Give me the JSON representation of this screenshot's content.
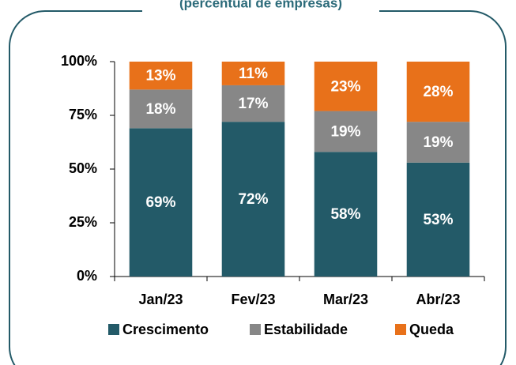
{
  "chart_data": {
    "type": "stacked_bar",
    "subtitle": "(percentual de empresas)",
    "categories": [
      "Jan/23",
      "Fev/23",
      "Mar/23",
      "Abr/23"
    ],
    "series": [
      {
        "name": "Crescimento",
        "color": "#235a68",
        "values": [
          69,
          72,
          58,
          53
        ],
        "value_labels": [
          "69%",
          "72%",
          "58%",
          "53%"
        ]
      },
      {
        "name": "Estabilidade",
        "color": "#878787",
        "values": [
          18,
          17,
          19,
          19
        ],
        "value_labels": [
          "18%",
          "17%",
          "19%",
          "19%"
        ]
      },
      {
        "name": "Queda",
        "color": "#e8711a",
        "values": [
          13,
          11,
          23,
          28
        ],
        "value_labels": [
          "13%",
          "11%",
          "23%",
          "28%"
        ]
      }
    ],
    "ylim": [
      0,
      100
    ],
    "yticks": [
      {
        "value": 0,
        "label": "0%"
      },
      {
        "value": 25,
        "label": "25%"
      },
      {
        "value": 50,
        "label": "50%"
      },
      {
        "value": 75,
        "label": "75%"
      },
      {
        "value": 100,
        "label": "100%"
      }
    ],
    "legend": "bottom"
  }
}
